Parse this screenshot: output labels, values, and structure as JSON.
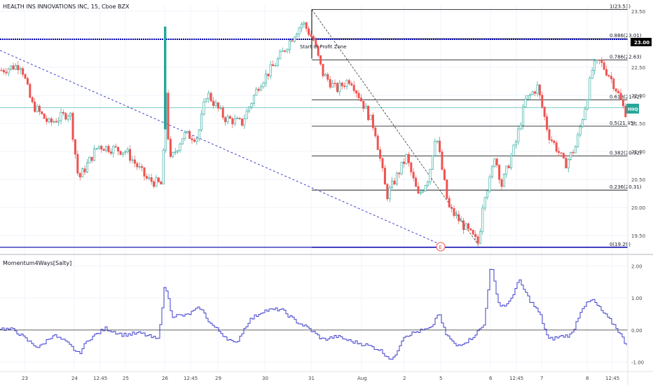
{
  "header": {
    "title": "HEALTH INS INNOVATIONS INC, 15, Cboe BZX"
  },
  "annotation": {
    "start_profit_label": "Start of Profit Zone",
    "event_marker": "E"
  },
  "indicator": {
    "name": "Momentum4Ways[Salty]"
  },
  "colors": {
    "up": "#26a69a",
    "down": "#ef5350",
    "fib": "#000000",
    "hline": "#0000aa",
    "momentum": "#3f3fcf",
    "trend": "#3f3fcf",
    "ma": "#7fcfbf"
  },
  "chart_data": [
    {
      "type": "candlestick",
      "title": "HEALTH INS INNOVATIONS INC, 15, Cboe BZX",
      "ylim": [
        19.3,
        23.6
      ],
      "y_ticks": [
        "23.50",
        "23.00",
        "22.50",
        "22.00",
        "21.50",
        "21.00",
        "20.50",
        "20.00",
        "19.50"
      ],
      "x_ticks": [
        "23",
        "24",
        "12:45",
        "25",
        "26",
        "12:45",
        "29",
        "30",
        "31",
        "Aug",
        "2",
        "5",
        "6",
        "12:45",
        "7",
        "8",
        "12:45"
      ],
      "price_label": "23.00",
      "symbol_badge": "HIIQ",
      "fib_levels": [
        {
          "label": "1(23.53)",
          "value": 23.53
        },
        {
          "label": "0.886(23.01)",
          "value": 23.01
        },
        {
          "label": "0.786(22.63)",
          "value": 22.63
        },
        {
          "label": "0.618(21.92)",
          "value": 21.92
        },
        {
          "label": "0.5(21.45)",
          "value": 21.45
        },
        {
          "label": "0.382(20.92)",
          "value": 20.92
        },
        {
          "label": "0.236(20.31)",
          "value": 20.31
        },
        {
          "label": "0(19.29)",
          "value": 19.29
        }
      ],
      "horizontal_line": 23.0,
      "moving_average": 21.78,
      "trendline_down": [
        [
          0,
          22.8
        ],
        [
          627,
          19.35
        ]
      ],
      "fib_diagonal": [
        [
          445,
          23.53
        ],
        [
          683,
          19.33
        ]
      ],
      "candle_anchors": [
        [
          2,
          22.45
        ],
        [
          30,
          22.55
        ],
        [
          45,
          21.85
        ],
        [
          70,
          21.5
        ],
        [
          100,
          21.7
        ],
        [
          112,
          20.5
        ],
        [
          140,
          21.1
        ],
        [
          180,
          21.0
        ],
        [
          210,
          20.5
        ],
        [
          232,
          20.4
        ],
        [
          236,
          22.2
        ],
        [
          242,
          20.8
        ],
        [
          262,
          21.3
        ],
        [
          282,
          21.25
        ],
        [
          295,
          22.05
        ],
        [
          320,
          21.6
        ],
        [
          345,
          21.5
        ],
        [
          370,
          22.2
        ],
        [
          395,
          22.6
        ],
        [
          420,
          23.1
        ],
        [
          432,
          23.3
        ],
        [
          447,
          23.0
        ],
        [
          460,
          22.4
        ],
        [
          480,
          22.1
        ],
        [
          500,
          22.3
        ],
        [
          520,
          21.8
        ],
        [
          535,
          21.4
        ],
        [
          552,
          20.2
        ],
        [
          566,
          20.55
        ],
        [
          580,
          20.9
        ],
        [
          597,
          20.2
        ],
        [
          612,
          20.55
        ],
        [
          622,
          21.35
        ],
        [
          640,
          20.0
        ],
        [
          660,
          19.7
        ],
        [
          683,
          19.35
        ],
        [
          690,
          20.2
        ],
        [
          700,
          20.5
        ],
        [
          706,
          20.95
        ],
        [
          716,
          20.4
        ],
        [
          736,
          21.15
        ],
        [
          750,
          21.9
        ],
        [
          767,
          22.15
        ],
        [
          783,
          21.3
        ],
        [
          797,
          21.0
        ],
        [
          806,
          20.75
        ],
        [
          822,
          21.1
        ],
        [
          836,
          21.85
        ],
        [
          846,
          22.5
        ],
        [
          856,
          22.6
        ],
        [
          870,
          22.35
        ],
        [
          880,
          22.1
        ],
        [
          892,
          21.7
        ]
      ]
    },
    {
      "type": "line",
      "title": "Momentum4Ways[Salty]",
      "ylim": [
        -1.25,
        2.25
      ],
      "y_ticks": [
        "2.00",
        "1.00",
        "0.00",
        "-1.00"
      ],
      "zero_line": 0.0,
      "series_anchors": [
        [
          0,
          0.05
        ],
        [
          20,
          0.0
        ],
        [
          40,
          -0.35
        ],
        [
          55,
          -0.55
        ],
        [
          75,
          -0.15
        ],
        [
          95,
          -0.4
        ],
        [
          112,
          -0.75
        ],
        [
          125,
          -0.3
        ],
        [
          150,
          0.05
        ],
        [
          175,
          -0.15
        ],
        [
          200,
          -0.1
        ],
        [
          225,
          -0.3
        ],
        [
          235,
          1.45
        ],
        [
          245,
          0.45
        ],
        [
          265,
          0.45
        ],
        [
          285,
          0.7
        ],
        [
          300,
          0.2
        ],
        [
          318,
          -0.15
        ],
        [
          335,
          -0.45
        ],
        [
          355,
          0.3
        ],
        [
          375,
          0.6
        ],
        [
          400,
          0.65
        ],
        [
          420,
          0.3
        ],
        [
          440,
          0.05
        ],
        [
          460,
          -0.3
        ],
        [
          480,
          -0.2
        ],
        [
          500,
          -0.35
        ],
        [
          520,
          -0.45
        ],
        [
          540,
          -0.6
        ],
        [
          560,
          -0.95
        ],
        [
          575,
          -0.2
        ],
        [
          595,
          -0.05
        ],
        [
          615,
          0.05
        ],
        [
          625,
          0.55
        ],
        [
          635,
          -0.1
        ],
        [
          650,
          -0.5
        ],
        [
          670,
          -0.3
        ],
        [
          690,
          0.15
        ],
        [
          700,
          2.05
        ],
        [
          712,
          0.75
        ],
        [
          725,
          0.8
        ],
        [
          740,
          1.55
        ],
        [
          755,
          0.95
        ],
        [
          770,
          0.5
        ],
        [
          782,
          -0.3
        ],
        [
          800,
          -0.2
        ],
        [
          815,
          -0.15
        ],
        [
          830,
          0.7
        ],
        [
          845,
          0.95
        ],
        [
          860,
          0.55
        ],
        [
          880,
          0.05
        ],
        [
          893,
          -0.45
        ]
      ]
    }
  ]
}
